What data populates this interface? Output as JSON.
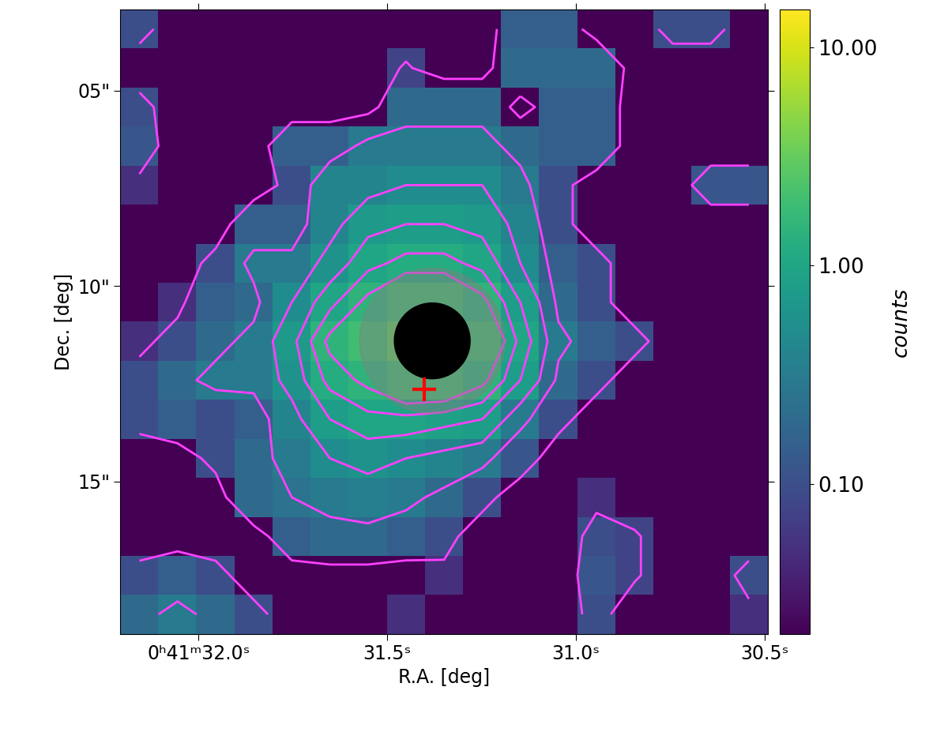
{
  "chart_data": {
    "type": "heatmap",
    "xlabel": "R.A. [deg]",
    "ylabel": "Dec. [deg]",
    "xlim": [
      32.207,
      30.492
    ],
    "xticks": [
      {
        "value": 32.0,
        "label": "0ʰ41ᵐ32.0ˢ"
      },
      {
        "value": 31.5,
        "label": "31.5ˢ"
      },
      {
        "value": 31.0,
        "label": "31.0ˢ"
      },
      {
        "value": 30.5,
        "label": "30.5ˢ"
      }
    ],
    "ylim": [
      18.9,
      2.92
    ],
    "yticks": [
      {
        "value": 5,
        "label": "05\""
      },
      {
        "value": 10,
        "label": "10\""
      },
      {
        "value": 15,
        "label": "15\""
      }
    ],
    "cells": [
      [
        0.1,
        0.02,
        0.02,
        0.02,
        0.02,
        0.02,
        0.02,
        0.02,
        0.02,
        0.02,
        0.15,
        0.15,
        0.02,
        0.02,
        0.1,
        0.1,
        0.02
      ],
      [
        0.02,
        0.02,
        0.02,
        0.02,
        0.02,
        0.02,
        0.02,
        0.08,
        0.02,
        0.02,
        0.2,
        0.2,
        0.2,
        0.02,
        0.02,
        0.02,
        0.02
      ],
      [
        0.1,
        0.02,
        0.02,
        0.02,
        0.02,
        0.02,
        0.02,
        0.2,
        0.2,
        0.2,
        0.02,
        0.15,
        0.15,
        0.02,
        0.02,
        0.02,
        0.02
      ],
      [
        0.12,
        0.02,
        0.02,
        0.02,
        0.15,
        0.15,
        0.3,
        0.3,
        0.3,
        0.3,
        0.2,
        0.15,
        0.15,
        0.02,
        0.02,
        0.02,
        0.02
      ],
      [
        0.05,
        0.02,
        0.02,
        0.02,
        0.1,
        0.4,
        0.4,
        0.5,
        0.5,
        0.5,
        0.3,
        0.1,
        0.02,
        0.02,
        0.02,
        0.12,
        0.12
      ],
      [
        0.02,
        0.02,
        0.02,
        0.15,
        0.15,
        0.4,
        0.7,
        0.8,
        0.8,
        0.7,
        0.4,
        0.1,
        0.02,
        0.02,
        0.02,
        0.02,
        0.02
      ],
      [
        0.02,
        0.02,
        0.1,
        0.3,
        0.3,
        0.6,
        1.0,
        1.2,
        1.2,
        1.0,
        0.5,
        0.15,
        0.1,
        0.02,
        0.02,
        0.02,
        0.02
      ],
      [
        0.02,
        0.05,
        0.15,
        0.2,
        0.5,
        1.0,
        1.5,
        2.0,
        2.0,
        1.5,
        0.8,
        0.2,
        0.1,
        0.02,
        0.02,
        0.02,
        0.02
      ],
      [
        0.05,
        0.1,
        0.2,
        0.3,
        0.7,
        1.5,
        2.0,
        3.0,
        3.0,
        2.0,
        1.0,
        0.3,
        0.15,
        0.1,
        0.02,
        0.02,
        0.02
      ],
      [
        0.1,
        0.2,
        0.3,
        0.3,
        0.6,
        1.2,
        1.5,
        2.0,
        2.0,
        1.5,
        0.8,
        0.2,
        0.1,
        0.02,
        0.02,
        0.02,
        0.02
      ],
      [
        0.1,
        0.15,
        0.1,
        0.15,
        0.4,
        0.8,
        1.0,
        1.0,
        0.9,
        0.8,
        0.3,
        0.1,
        0.02,
        0.02,
        0.02,
        0.02,
        0.02
      ],
      [
        0.02,
        0.02,
        0.1,
        0.2,
        0.3,
        0.5,
        0.6,
        0.5,
        0.4,
        0.3,
        0.12,
        0.02,
        0.02,
        0.02,
        0.02,
        0.02,
        0.02
      ],
      [
        0.02,
        0.02,
        0.02,
        0.2,
        0.25,
        0.3,
        0.35,
        0.3,
        0.2,
        0.1,
        0.02,
        0.02,
        0.05,
        0.02,
        0.02,
        0.02,
        0.02
      ],
      [
        0.02,
        0.02,
        0.02,
        0.02,
        0.15,
        0.2,
        0.2,
        0.15,
        0.1,
        0.02,
        0.02,
        0.02,
        0.1,
        0.08,
        0.02,
        0.02,
        0.02
      ],
      [
        0.1,
        0.15,
        0.1,
        0.02,
        0.02,
        0.02,
        0.02,
        0.02,
        0.05,
        0.02,
        0.02,
        0.02,
        0.12,
        0.08,
        0.02,
        0.02,
        0.1
      ],
      [
        0.2,
        0.3,
        0.2,
        0.1,
        0.02,
        0.02,
        0.02,
        0.05,
        0.02,
        0.02,
        0.02,
        0.02,
        0.1,
        0.02,
        0.02,
        0.02,
        0.05
      ]
    ],
    "colorbar": {
      "label": "counts",
      "log": true,
      "range": [
        0.0206,
        14.9
      ],
      "ticks": [
        {
          "value": 0.1,
          "label": "0.10"
        },
        {
          "value": 1.0,
          "label": "1.00"
        },
        {
          "value": 10.0,
          "label": "10.00"
        }
      ]
    },
    "contours": {
      "levels": [
        0.07,
        0.25,
        0.5,
        0.8,
        1.1,
        1.4
      ],
      "color": "#ff40ff"
    },
    "masks": [
      {
        "ra": 31.381,
        "dec": 11.4,
        "radius": 1.86,
        "color": "gray"
      },
      {
        "ra": 31.381,
        "dec": 11.4,
        "radius": 0.97,
        "color": "black"
      }
    ],
    "source": {
      "ra": 31.402,
      "dec": 12.64,
      "color": "red",
      "marker": "plus"
    }
  }
}
